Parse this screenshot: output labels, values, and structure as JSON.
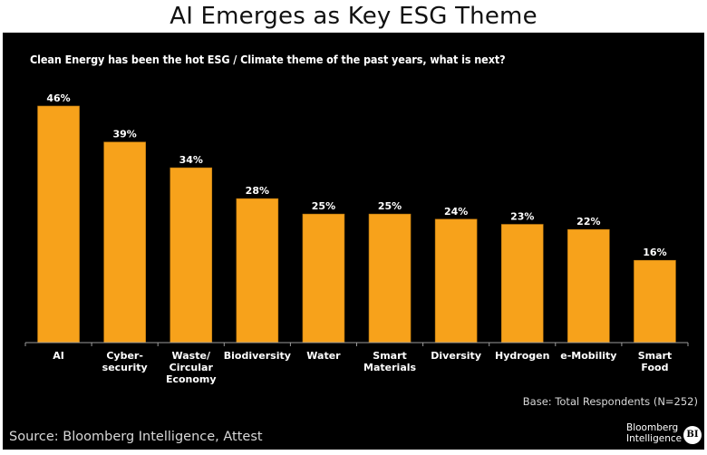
{
  "header": {
    "title": "AI Emerges as Key ESG Theme"
  },
  "chart_data": {
    "type": "bar",
    "title": "AI Emerges as Key ESG Theme",
    "subtitle": "Clean Energy has been the hot ESG / Climate theme of the past years, what is next?",
    "categories": [
      [
        "AI"
      ],
      [
        "Cyber-",
        "security"
      ],
      [
        "Waste/",
        "Circular",
        "Economy"
      ],
      [
        "Biodiversity"
      ],
      [
        "Water"
      ],
      [
        "Smart",
        "Materials"
      ],
      [
        "Diversity"
      ],
      [
        "Hydrogen"
      ],
      [
        "e-Mobility"
      ],
      [
        "Smart",
        "Food"
      ]
    ],
    "values": [
      46,
      39,
      34,
      28,
      25,
      25,
      24,
      23,
      22,
      16
    ],
    "value_labels": [
      "46%",
      "39%",
      "34%",
      "28%",
      "25%",
      "25%",
      "24%",
      "23%",
      "22%",
      "16%"
    ],
    "unit": "%",
    "xlabel": "",
    "ylabel": "",
    "ylim": [
      0,
      46
    ],
    "grid": false,
    "legend": "none",
    "bar_color": "#F7A21B",
    "background_color": "#000000",
    "annotations": [
      "Base: Total Respondents (N=252)"
    ]
  },
  "footer": {
    "base_note": "Base: Total Respondents (N=252)",
    "source": "Source: Bloomberg Intelligence, Attest",
    "brand_line1": "Bloomberg",
    "brand_line2": "Intelligence",
    "brand_badge": "BI"
  }
}
